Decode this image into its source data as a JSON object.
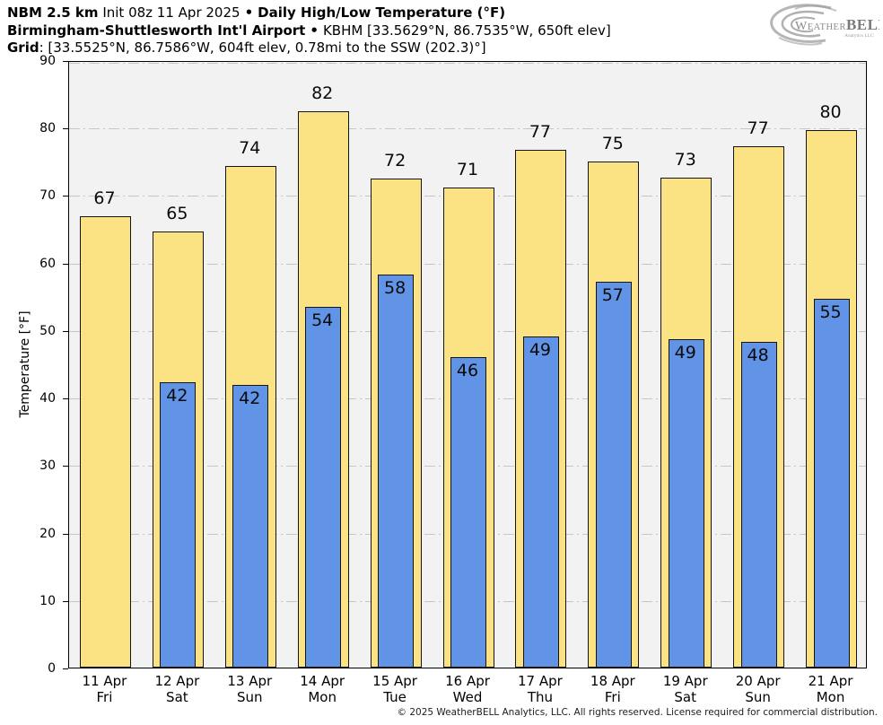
{
  "header": {
    "model": "NBM 2.5 km",
    "init": "Init 08z 11 Apr 2025",
    "separator": "•",
    "product": "Daily High/Low Temperature (°F)",
    "station": "Birmingham-Shuttlesworth Int'l Airport",
    "station_info": "KBHM [33.5629°N, 86.7535°W, 650ft elev]",
    "grid_label": "Grid",
    "grid_info": ": [33.5525°N, 86.7586°W, 604ft elev, 0.78mi to the SSW (202.3)°]"
  },
  "logo": {
    "weather_initial": "W",
    "weather_rest": "EATHER",
    "bell": "BELL",
    "subtitle": "Analytics LLC"
  },
  "chart_data": {
    "type": "bar",
    "title": "Daily High/Low Temperature (°F)",
    "ylabel": "Temperature [°F]",
    "ylim": [
      0,
      90
    ],
    "yticks": [
      0,
      10,
      20,
      30,
      40,
      50,
      60,
      70,
      80,
      90
    ],
    "grid": "horizontal dash-dot",
    "legend": "none",
    "plot_bg": "#f2f2f2",
    "categories": [
      {
        "date": "11 Apr",
        "day": "Fri"
      },
      {
        "date": "12 Apr",
        "day": "Sat"
      },
      {
        "date": "13 Apr",
        "day": "Sun"
      },
      {
        "date": "14 Apr",
        "day": "Mon"
      },
      {
        "date": "15 Apr",
        "day": "Tue"
      },
      {
        "date": "16 Apr",
        "day": "Wed"
      },
      {
        "date": "17 Apr",
        "day": "Thu"
      },
      {
        "date": "18 Apr",
        "day": "Fri"
      },
      {
        "date": "19 Apr",
        "day": "Sat"
      },
      {
        "date": "20 Apr",
        "day": "Sun"
      },
      {
        "date": "21 Apr",
        "day": "Mon"
      }
    ],
    "series": [
      {
        "name": "High",
        "color": "#FBE282",
        "labels": [
          67,
          65,
          74,
          82,
          72,
          71,
          77,
          75,
          73,
          77,
          80
        ],
        "values": [
          66.9,
          64.6,
          74.3,
          82.4,
          72.45,
          71.1,
          76.7,
          75.0,
          72.6,
          77.3,
          79.6
        ]
      },
      {
        "name": "Low",
        "color": "#6193E6",
        "labels": [
          null,
          42,
          42,
          54,
          58,
          46,
          49,
          57,
          49,
          48,
          55
        ],
        "values": [
          null,
          42.3,
          41.9,
          53.5,
          58.2,
          46.0,
          49.1,
          57.2,
          48.6,
          48.2,
          54.6
        ]
      }
    ]
  },
  "footer": {
    "copyright": "© 2025 WeatherBELL Analytics, LLC. All rights reserved. License required for commercial distribution."
  }
}
